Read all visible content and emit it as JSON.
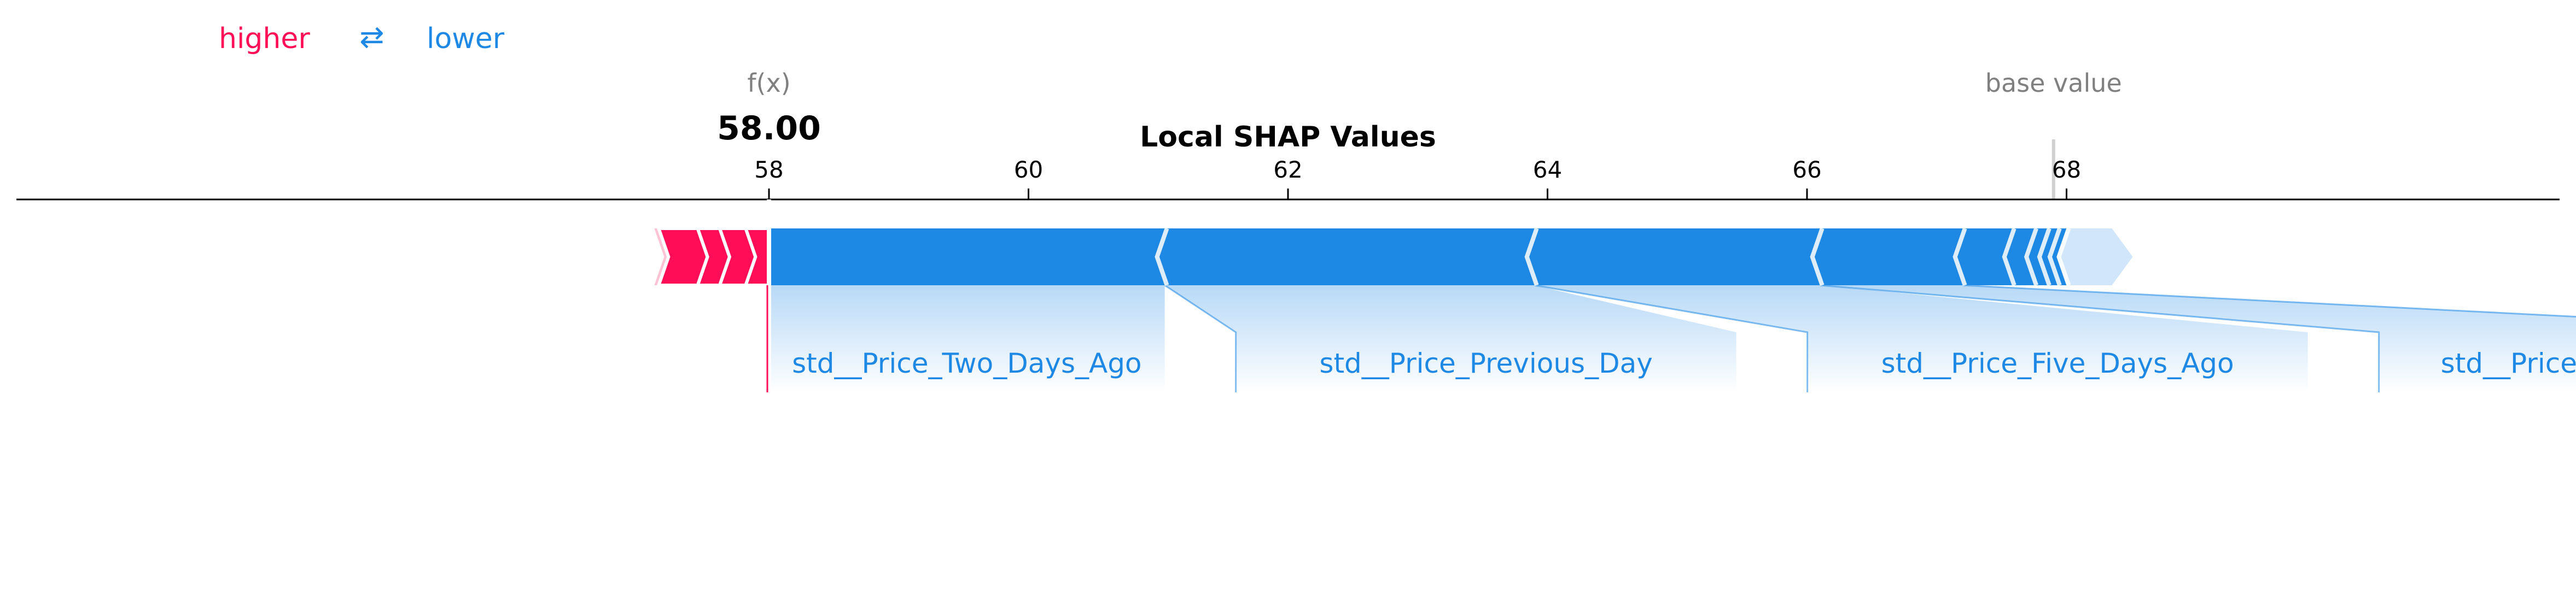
{
  "chart_data": {
    "type": "force",
    "title": "Local SHAP Values",
    "legend": {
      "higher": "higher",
      "arrow": "⇄",
      "lower": "lower"
    },
    "fx_label": "f(x)",
    "fx_value": "58.00",
    "base_label": "base value",
    "base_value": 67.9,
    "output_value": 58.0,
    "xlim": [
      52.2,
      71.8
    ],
    "ticks": [
      58,
      60,
      62,
      64,
      66,
      68
    ],
    "positive_features": [
      {
        "start": 57.82,
        "end": 58.0
      },
      {
        "start": 57.62,
        "end": 57.82
      },
      {
        "start": 57.45,
        "end": 57.62
      },
      {
        "start": 57.15,
        "end": 57.45
      }
    ],
    "negative_features": [
      {
        "name": "std__Price_Two_Days_Ago",
        "start": 58.0,
        "end": 61.05
      },
      {
        "name": "std__Price_Previous_Day",
        "start": 61.05,
        "end": 63.9
      },
      {
        "name": "std__Price_Five_Days_Ago",
        "start": 63.9,
        "end": 66.1
      },
      {
        "name": "std__Price_Three_Days_Ago",
        "start": 66.1,
        "end": 67.2
      },
      {
        "name": "",
        "start": 67.2,
        "end": 67.58
      },
      {
        "name": "",
        "start": 67.58,
        "end": 67.75
      },
      {
        "name": "",
        "start": 67.75,
        "end": 67.85
      },
      {
        "name": "",
        "start": 67.85,
        "end": 67.93
      },
      {
        "name": "",
        "start": 67.93,
        "end": 68.0
      },
      {
        "name": "",
        "start": 68.0,
        "end": 68.35
      }
    ],
    "colors": {
      "positive": "#ff0d57",
      "positive_light": "#ffc3d5",
      "negative": "#1e88e5",
      "negative_light": "#d1e6fa",
      "axis": "#000000",
      "muted": "#808080"
    }
  }
}
